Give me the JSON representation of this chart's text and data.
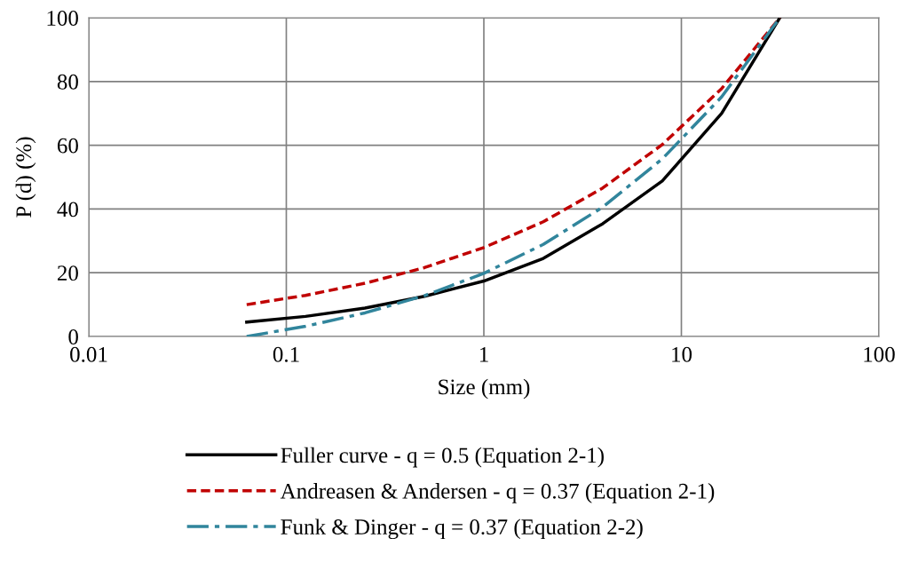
{
  "chart_data": {
    "type": "line",
    "xlabel": "Size (mm)",
    "ylabel": "P (d) (%)",
    "log": "x",
    "x": [
      0.063,
      0.125,
      0.25,
      0.5,
      1,
      2,
      4,
      8,
      16,
      31.5
    ],
    "series": [
      {
        "name": "Fuller curve - q = 0.5 (Equation 2-1)",
        "color": "#000000",
        "line_style": "solid",
        "values": [
          4.5,
          6.3,
          8.9,
          12.6,
          17.4,
          24.5,
          35.4,
          48.8,
          70,
          100
        ]
      },
      {
        "name": "Andreasen & Andersen - q = 0.37 (Equation 2-1)",
        "color": "#c00000",
        "line_style": "dashed",
        "values": [
          10,
          12.9,
          16.7,
          21.6,
          27.9,
          36,
          46.6,
          60.2,
          77.8,
          100
        ]
      },
      {
        "name": "Funk & Dinger - q = 0.37 (Equation 2-2)",
        "color": "#31859c",
        "line_style": "dashdot",
        "values": [
          0,
          3.2,
          7.4,
          12.8,
          19.8,
          28.9,
          40.6,
          55.7,
          75.2,
          100
        ]
      }
    ],
    "xlim": [
      0.01,
      100
    ],
    "xticks": [
      0.01,
      0.1,
      1,
      10,
      100
    ],
    "ylim": [
      0,
      100
    ],
    "yticks": [
      0,
      20,
      40,
      60,
      80,
      100
    ],
    "grid": true,
    "legend": "bottom",
    "marker": "none"
  }
}
